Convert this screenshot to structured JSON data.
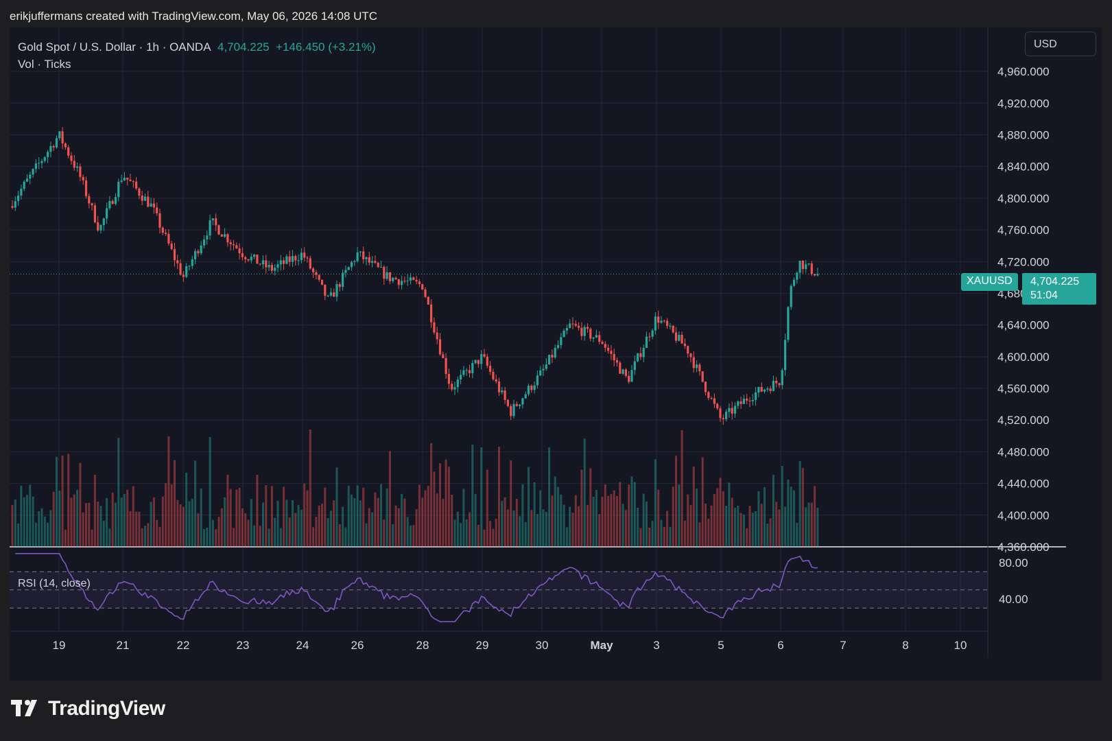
{
  "header": {
    "attribution": "erikjuffermans created with TradingView.com, May 06, 2026 14:08 UTC"
  },
  "legend": {
    "symbol_line": "Gold Spot / U.S. Dollar · 1h · OANDA",
    "last": "4,704.225",
    "change": "+146.450 (+3.21%)",
    "volume_line": "Vol · Ticks"
  },
  "currency_button": "USD",
  "symbol_tag": "XAUUSD",
  "price_tag": {
    "price": "4,704.225",
    "countdown": "51:04"
  },
  "rsi_label": "RSI (14, close)",
  "brand": {
    "name": "TradingView"
  },
  "colors": {
    "up": "#26a69a",
    "down": "#ef5350",
    "rsi": "#7e57c2",
    "background": "#141722"
  },
  "chart_data": [
    {
      "type": "candlestick",
      "title": "Gold Spot / U.S. Dollar · 1h · OANDA",
      "ylim": [
        4360,
        4980
      ],
      "y_ticks": [
        "4,960.000",
        "4,920.000",
        "4,880.000",
        "4,840.000",
        "4,800.000",
        "4,760.000",
        "4,720.000",
        "4,680.000",
        "4,640.000",
        "4,600.000",
        "4,560.000",
        "4,520.000",
        "4,480.000",
        "4,440.000",
        "4,400.000",
        "4,360.000"
      ],
      "x_ticks": [
        "19",
        "21",
        "22",
        "23",
        "24",
        "26",
        "28",
        "29",
        "30",
        "May",
        "3",
        "5",
        "6",
        "7",
        "8",
        "10"
      ],
      "close_path": [
        [
          "18",
          4790
        ],
        [
          "19",
          4880
        ],
        [
          "19",
          4830
        ],
        [
          "19",
          4760
        ],
        [
          "21",
          4830
        ],
        [
          "21",
          4790
        ],
        [
          "22",
          4700
        ],
        [
          "22",
          4770
        ],
        [
          "23",
          4730
        ],
        [
          "23",
          4710
        ],
        [
          "24",
          4730
        ],
        [
          "24",
          4670
        ],
        [
          "26",
          4730
        ],
        [
          "26",
          4700
        ],
        [
          "28",
          4690
        ],
        [
          "28",
          4560
        ],
        [
          "29",
          4600
        ],
        [
          "29",
          4530
        ],
        [
          "30",
          4580
        ],
        [
          "30",
          4640
        ],
        [
          "May",
          4620
        ],
        [
          "May",
          4570
        ],
        [
          "3",
          4650
        ],
        [
          "3",
          4610
        ],
        [
          "5",
          4520
        ],
        [
          "5",
          4550
        ],
        [
          "6",
          4570
        ],
        [
          "6",
          4680
        ],
        [
          "6",
          4720
        ],
        [
          "6",
          4704.225
        ]
      ],
      "last_price": 4704.225
    },
    {
      "type": "bar",
      "name": "Vol · Ticks",
      "description_levels": "tick volume histogram, colored by candle direction"
    },
    {
      "type": "line",
      "name": "RSI (14, close)",
      "y_ticks": [
        "80.00",
        "40.00"
      ],
      "bands": [
        30,
        50,
        70
      ],
      "last_value": 70
    }
  ]
}
